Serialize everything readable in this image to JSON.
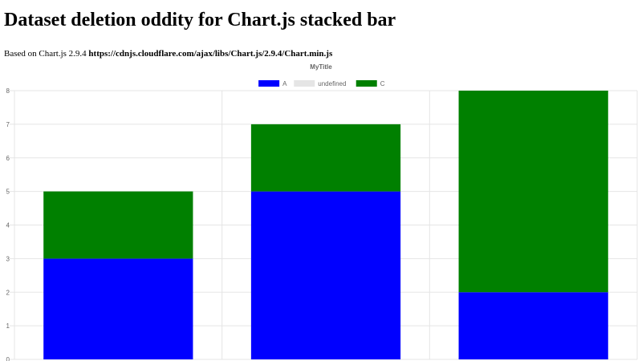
{
  "page": {
    "heading": "Dataset deletion oddity for Chart.js stacked bar",
    "info_prefix": "Based on Chart.js 2.9.4",
    "info_url": "https://cdnjs.cloudflare.com/ajax/libs/Chart.js/2.9.4/Chart.min.js"
  },
  "chart_data": {
    "type": "bar",
    "stacked": true,
    "title": "MyTitle",
    "legend_position": "top",
    "grid": true,
    "categories": [
      "",
      "",
      ""
    ],
    "ylim": [
      0,
      8
    ],
    "yticks": [
      "0",
      "1",
      "2",
      "3",
      "4",
      "5",
      "6",
      "7",
      "8"
    ],
    "series": [
      {
        "name": "A",
        "color": "#0000ff",
        "values": [
          3,
          5,
          2
        ]
      },
      {
        "name": "undefined",
        "color": "#e5e5e5",
        "values": [
          0,
          0,
          0
        ]
      },
      {
        "name": "C",
        "color": "#008000",
        "values": [
          2,
          2,
          6
        ]
      }
    ]
  }
}
